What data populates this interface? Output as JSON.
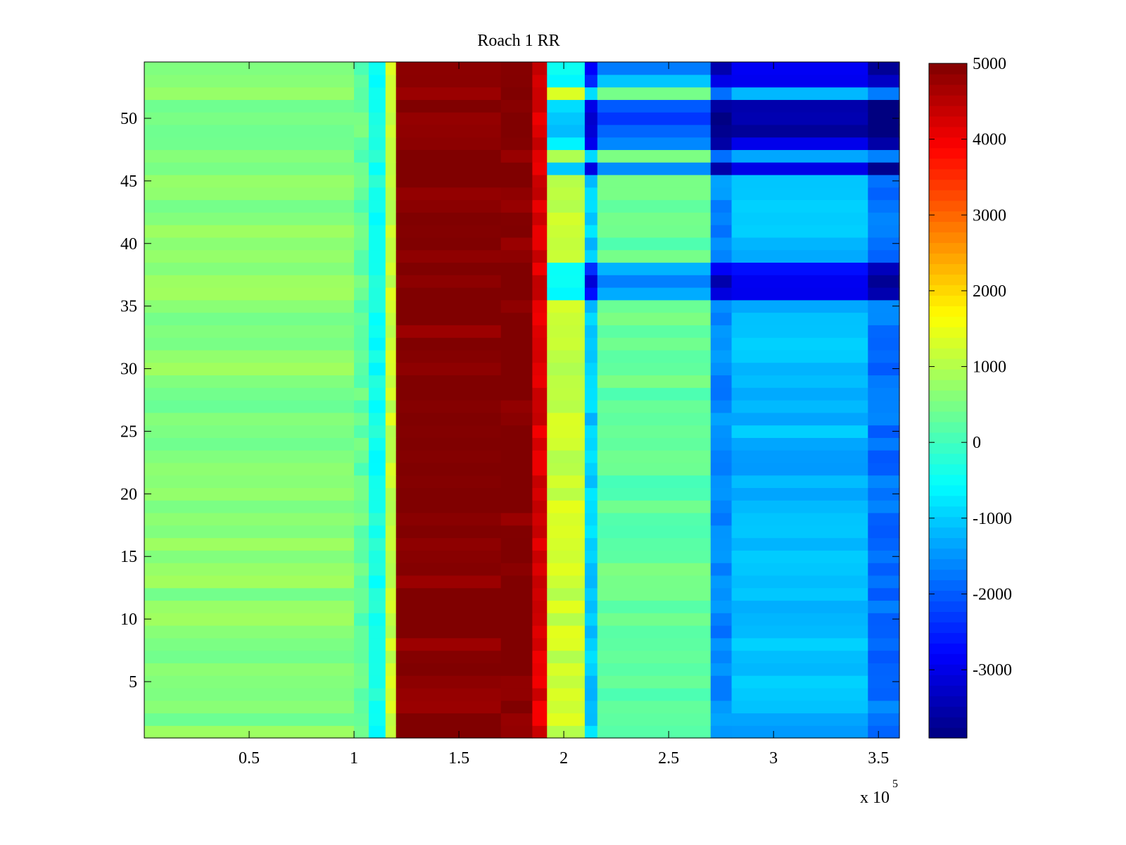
{
  "chart_data": {
    "type": "heatmap",
    "title": "Roach 1 RR",
    "xlabel": "",
    "ylabel": "",
    "x_multiplier_label": "x 10",
    "x_multiplier_exponent": "5",
    "xlim": [
      0,
      360000
    ],
    "ylim": [
      0.5,
      54.5
    ],
    "x_ticks": [
      50000,
      100000,
      150000,
      200000,
      250000,
      300000,
      350000
    ],
    "x_tick_labels": [
      "0.5",
      "1",
      "1.5",
      "2",
      "2.5",
      "3",
      "3.5"
    ],
    "y_ticks": [
      5,
      10,
      15,
      20,
      25,
      30,
      35,
      40,
      45,
      50
    ],
    "y_tick_labels": [
      "5",
      "10",
      "15",
      "20",
      "25",
      "30",
      "35",
      "40",
      "45",
      "50"
    ],
    "n_rows": 54,
    "colormap": "jet",
    "color_range": [
      -3900,
      5000
    ],
    "colorbar_ticks": [
      5000,
      4000,
      3000,
      2000,
      1000,
      0,
      -1000,
      -2000,
      -3000
    ],
    "colorbar_tick_labels": [
      "5000",
      "4000",
      "3000",
      "2000",
      "1000",
      "0",
      "-1000",
      "-2000",
      "-3000"
    ],
    "x_breakpoints": [
      0,
      100000,
      107000,
      115000,
      120000,
      170000,
      185000,
      192000,
      210000,
      216000,
      270000,
      280000,
      345000,
      360000
    ],
    "band_profile": [
      600,
      300,
      -400,
      1200,
      5000,
      5000,
      4200,
      1200,
      -1000,
      300,
      -1600,
      -1200,
      -1800,
      -2600
    ],
    "shifted_rows": [
      {
        "row": 36,
        "offset": -1700
      },
      {
        "row": 37,
        "offset": -1900
      },
      {
        "row": 38,
        "offset": -1500
      },
      {
        "row": 46,
        "offset": -2000
      },
      {
        "row": 48,
        "offset": -1900
      },
      {
        "row": 49,
        "offset": -2300
      },
      {
        "row": 50,
        "offset": -2400
      },
      {
        "row": 51,
        "offset": -2200
      },
      {
        "row": 53,
        "offset": -1600
      },
      {
        "row": 54,
        "offset": -1800
      }
    ]
  }
}
